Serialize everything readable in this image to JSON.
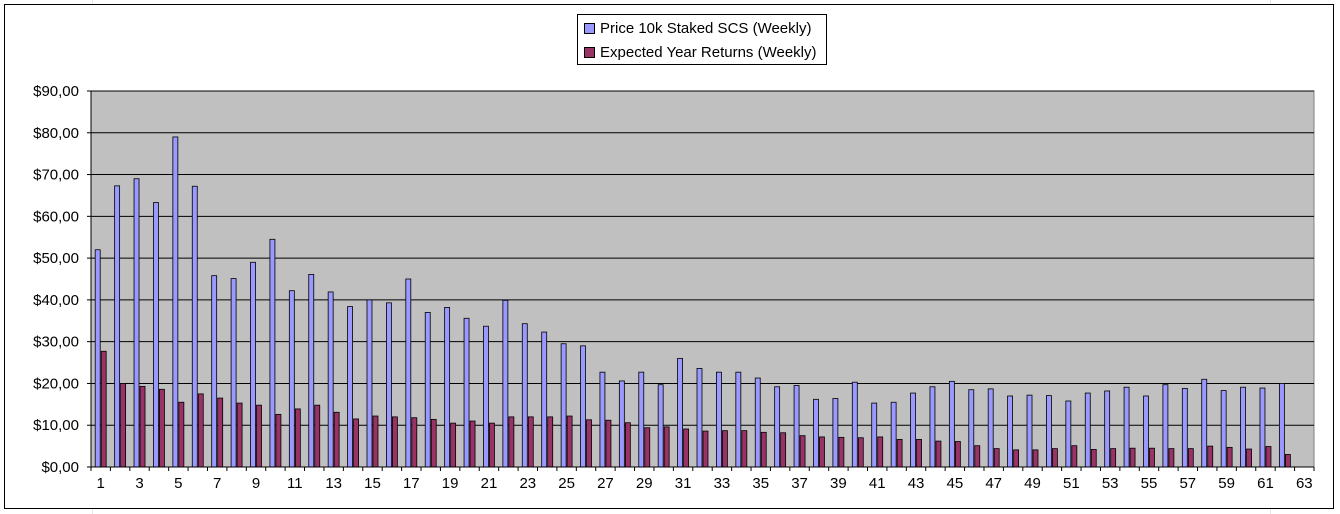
{
  "chart_data": {
    "type": "bar",
    "title": "",
    "xlabel": "",
    "ylabel": "",
    "ylim": [
      0,
      90
    ],
    "y_ticks": [
      "$0,00",
      "$10,00",
      "$20,00",
      "$30,00",
      "$40,00",
      "$50,00",
      "$60,00",
      "$70,00",
      "$80,00",
      "$90,00"
    ],
    "x_tick_labels": [
      "1",
      "3",
      "5",
      "7",
      "9",
      "11",
      "13",
      "15",
      "17",
      "19",
      "21",
      "23",
      "25",
      "27",
      "29",
      "31",
      "33",
      "35",
      "37",
      "39",
      "41",
      "43",
      "45",
      "47",
      "49",
      "51",
      "53",
      "55",
      "57",
      "59",
      "61",
      "63"
    ],
    "categories": [
      1,
      2,
      3,
      4,
      5,
      6,
      7,
      8,
      9,
      10,
      11,
      12,
      13,
      14,
      15,
      16,
      17,
      18,
      19,
      20,
      21,
      22,
      23,
      24,
      25,
      26,
      27,
      28,
      29,
      30,
      31,
      32,
      33,
      34,
      35,
      36,
      37,
      38,
      39,
      40,
      41,
      42,
      43,
      44,
      45,
      46,
      47,
      48,
      49,
      50,
      51,
      52,
      53,
      54,
      55,
      56,
      57,
      58,
      59,
      60,
      61,
      62,
      63
    ],
    "grid": true,
    "plot_background": "#c0c0c0",
    "legend_position": "top",
    "series": [
      {
        "name": "Price 10k Staked SCS (Weekly)",
        "color": "#9999ff",
        "values": [
          52.0,
          67.3,
          69.0,
          63.3,
          79.0,
          67.2,
          45.8,
          45.1,
          49.0,
          54.5,
          42.2,
          46.1,
          41.9,
          38.4,
          40.0,
          39.3,
          45.0,
          37.0,
          38.2,
          35.6,
          33.7,
          39.9,
          34.3,
          32.3,
          29.5,
          29.0,
          22.7,
          20.6,
          22.7,
          19.7,
          26.0,
          23.6,
          22.7,
          22.7,
          21.3,
          19.2,
          19.5,
          16.2,
          16.4,
          20.3,
          15.3,
          15.5,
          17.7,
          19.2,
          20.5,
          18.5,
          18.7,
          17.0,
          17.2,
          17.1,
          15.8,
          17.7,
          18.2,
          19.1,
          17.0,
          19.7,
          18.8,
          21.0,
          18.3,
          19.1,
          18.9,
          20.0,
          null
        ]
      },
      {
        "name": "Expected Year Returns (Weekly)",
        "color": "#993366",
        "values": [
          27.7,
          20.0,
          19.3,
          18.6,
          15.5,
          17.5,
          16.5,
          15.3,
          14.8,
          12.6,
          13.9,
          14.8,
          13.1,
          11.5,
          12.2,
          12.0,
          11.8,
          11.4,
          10.5,
          11.0,
          10.5,
          12.0,
          12.0,
          12.0,
          12.2,
          11.3,
          11.2,
          10.6,
          9.4,
          9.6,
          9.1,
          8.6,
          8.7,
          8.7,
          8.3,
          8.2,
          7.5,
          7.2,
          7.1,
          7.0,
          7.2,
          6.6,
          6.6,
          6.2,
          6.1,
          5.1,
          4.4,
          4.1,
          4.1,
          4.4,
          5.1,
          4.2,
          4.4,
          4.5,
          4.5,
          4.4,
          4.4,
          5.0,
          4.7,
          4.3,
          4.9,
          3.0,
          null
        ]
      }
    ]
  }
}
